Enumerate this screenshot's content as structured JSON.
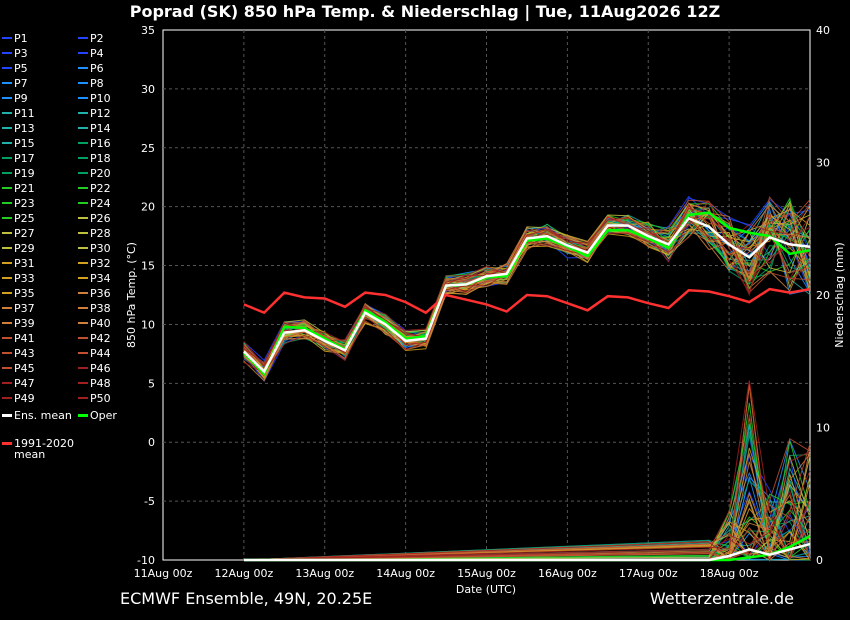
{
  "title": "Poprad  (SK)  850 hPa Temp. & Niederschlag | Tue, 11Aug2026 12Z",
  "footer_left": "ECMWF Ensemble, 49N, 20.25E",
  "footer_right": "Wetterzentrale.de",
  "colors": {
    "ens_mean": "#ffffff",
    "oper": "#00ff00",
    "climate_mean": "#ff3030",
    "member_palette": [
      "#2244ff",
      "#1e90ff",
      "#20b2aa",
      "#00a060",
      "#22cc22",
      "#bfbf40",
      "#d4a020",
      "#d0803a",
      "#c05030",
      "#a02020"
    ]
  },
  "legend": {
    "members": [
      "P1",
      "P2",
      "P3",
      "P4",
      "P5",
      "P6",
      "P7",
      "P8",
      "P9",
      "P10",
      "P11",
      "P12",
      "P13",
      "P14",
      "P15",
      "P16",
      "P17",
      "P18",
      "P19",
      "P20",
      "P21",
      "P22",
      "P23",
      "P24",
      "P25",
      "P26",
      "P27",
      "P28",
      "P29",
      "P30",
      "P31",
      "P32",
      "P33",
      "P34",
      "P35",
      "P36",
      "P37",
      "P38",
      "P39",
      "P40",
      "P41",
      "P42",
      "P43",
      "P44",
      "P45",
      "P46",
      "P47",
      "P48",
      "P49",
      "P50"
    ],
    "ens_mean": "Ens. mean",
    "oper": "Oper",
    "climate_line1": "1991-2020",
    "climate_line2": "mean"
  },
  "chart_data": {
    "type": "line",
    "xlabel": "Date (UTC)",
    "ylabel": "850 hPa Temp. (°C)",
    "y2label": "Niederschlag (mm)",
    "ylim": [
      -10,
      35
    ],
    "y2lim": [
      0,
      40
    ],
    "yticks": [
      -10,
      -5,
      0,
      5,
      10,
      15,
      20,
      25,
      30,
      35
    ],
    "y2ticks": [
      0,
      10,
      20,
      30,
      40
    ],
    "xlim_days": [
      0,
      8
    ],
    "xticks": [
      "11Aug 00z",
      "12Aug 00z",
      "13Aug 00z",
      "14Aug 00z",
      "15Aug 00z",
      "16Aug 00z",
      "17Aug 00z",
      "18Aug 00z"
    ],
    "grid": true,
    "temperature": {
      "x_days": [
        1.0,
        1.25,
        1.5,
        1.75,
        2.0,
        2.25,
        2.5,
        2.75,
        3.0,
        3.25,
        3.5,
        3.75,
        4.0,
        4.25,
        4.5,
        4.75,
        5.0,
        5.25,
        5.5,
        5.75,
        6.0,
        6.25,
        6.5,
        6.75,
        7.0,
        7.25,
        7.5,
        7.75,
        8.0
      ],
      "ens_mean": [
        7.7,
        6.0,
        9.3,
        9.5,
        8.6,
        7.8,
        11.0,
        10.0,
        8.6,
        8.8,
        13.3,
        13.4,
        14.1,
        14.3,
        17.3,
        17.5,
        16.7,
        16.1,
        18.4,
        18.4,
        17.5,
        16.8,
        19.0,
        18.3,
        16.8,
        15.7,
        17.4,
        16.8,
        16.6
      ],
      "oper": [
        7.6,
        5.8,
        9.8,
        9.7,
        8.8,
        7.9,
        11.2,
        10.2,
        8.8,
        9.0,
        13.3,
        13.4,
        14.0,
        14.1,
        17.1,
        17.3,
        16.6,
        15.8,
        18.0,
        18.0,
        17.3,
        16.5,
        19.3,
        19.5,
        18.2,
        17.8,
        17.5,
        16.0,
        16.3
      ],
      "climate_mean": [
        11.7,
        11.0,
        12.7,
        12.3,
        12.2,
        11.5,
        12.7,
        12.5,
        11.9,
        11.0,
        12.5,
        12.1,
        11.7,
        11.1,
        12.5,
        12.4,
        11.8,
        11.2,
        12.4,
        12.3,
        11.8,
        11.4,
        12.9,
        12.8,
        12.4,
        11.9,
        13.0,
        12.7,
        13.0
      ]
    },
    "precipitation": {
      "x_days": [
        6.75,
        7.0,
        7.25,
        7.5,
        7.75,
        8.0
      ],
      "ens_mean_mm": [
        0.0,
        0.3,
        0.8,
        0.4,
        0.8,
        1.2
      ],
      "oper_mm": [
        0.0,
        0.0,
        0.2,
        0.4,
        1.0,
        1.8
      ],
      "member_max_mm": [
        1.5,
        3.8,
        14.0,
        6.0,
        10.0,
        9.0
      ]
    }
  }
}
